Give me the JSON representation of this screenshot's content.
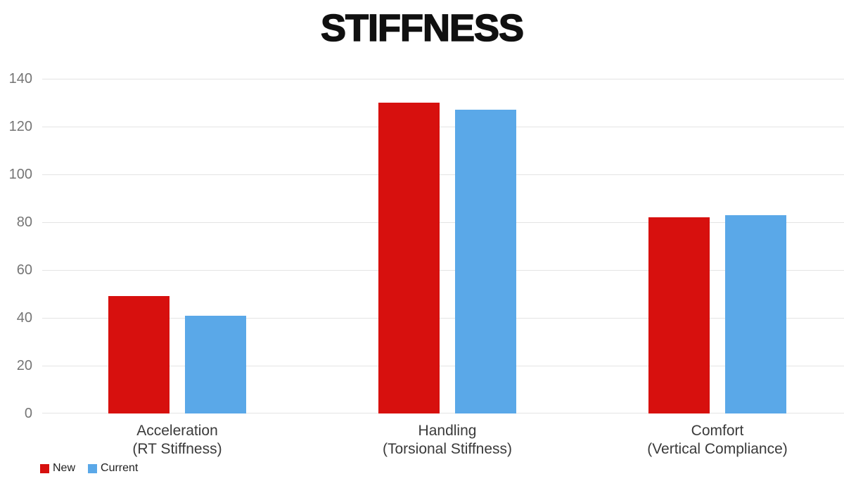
{
  "title": "STIFFNESS",
  "colors": {
    "new_series": "#d7100e",
    "current_series": "#5aa8e8",
    "gridline": "#e4e4e4",
    "y_tick_label": "#757575",
    "category_label": "#3a3a3a",
    "title_text": "#101010",
    "background": "#ffffff"
  },
  "legend": {
    "items": [
      {
        "label": "New",
        "color": "#d7100e"
      },
      {
        "label": "Current",
        "color": "#5aa8e8"
      }
    ]
  },
  "chart_data": {
    "type": "bar",
    "title": "STIFFNESS",
    "categories": [
      {
        "line1": "Acceleration",
        "line2": "(RT Stiffness)"
      },
      {
        "line1": "Handling",
        "line2": "(Torsional Stiffness)"
      },
      {
        "line1": "Comfort",
        "line2": "(Vertical Compliance)"
      }
    ],
    "series": [
      {
        "name": "New",
        "color": "#d7100e",
        "values": [
          49,
          130,
          82
        ]
      },
      {
        "name": "Current",
        "color": "#5aa8e8",
        "values": [
          41,
          127,
          83
        ]
      }
    ],
    "xlabel": "",
    "ylabel": "",
    "ylim": [
      0,
      140
    ],
    "yticks": [
      0,
      20,
      40,
      60,
      80,
      100,
      120,
      140
    ],
    "grid": true,
    "legend_position": "bottom-left"
  }
}
